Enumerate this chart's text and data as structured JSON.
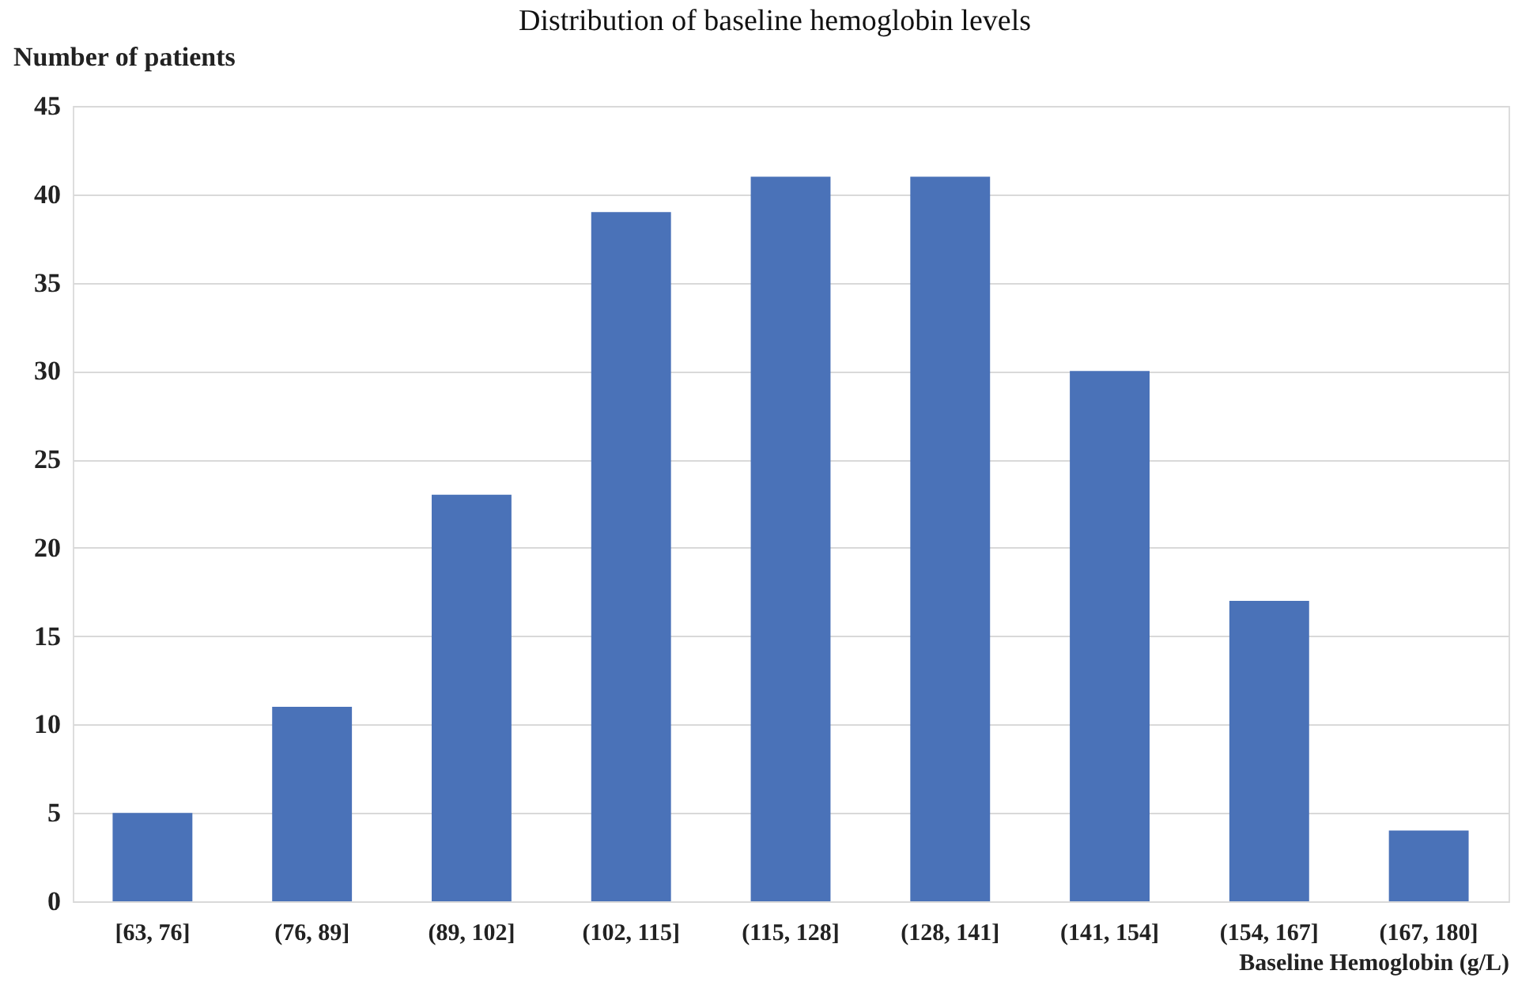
{
  "chart_data": {
    "type": "bar",
    "title": "Distribution of baseline hemoglobin levels",
    "ylabel": "Number of patients",
    "xlabel": "Baseline Hemoglobin (g/L)",
    "categories": [
      "[63, 76]",
      "(76, 89]",
      "(89, 102]",
      "(102, 115]",
      "(115, 128]",
      "(128, 141]",
      "(141, 154]",
      "(154, 167]",
      "(167, 180]"
    ],
    "values": [
      5,
      11,
      23,
      39,
      41,
      41,
      30,
      17,
      4
    ],
    "color": "#4a72b8",
    "ylim": [
      0,
      45
    ],
    "yticks": [
      0,
      5,
      10,
      15,
      20,
      25,
      30,
      35,
      40,
      45
    ],
    "grid": "y"
  }
}
